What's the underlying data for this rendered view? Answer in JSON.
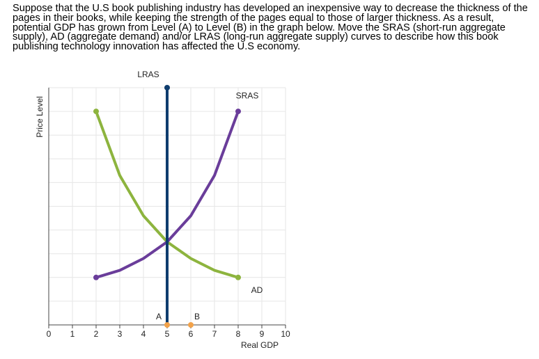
{
  "question": "Suppose that the U.S book publishing industry has developed an inexpensive way to decrease the thickness of the pages in their books, while keeping the strength of the pages equal to those of larger thickness. As a result, potential GDP has grown from Level (A) to Level (B) in the graph below. Move the SRAS (short-run aggregate supply), AD (aggregate demand) and/or LRAS (long-run aggregate supply) curves to describe how this book publishing technology innovation has affected the U.S economy.",
  "chart_data": {
    "type": "line",
    "x_label": "Real GDP",
    "y_label": "Price Level",
    "xlim": [
      0,
      10
    ],
    "ylim": [
      0,
      10
    ],
    "xticks": [
      0,
      1,
      2,
      3,
      4,
      5,
      6,
      7,
      8,
      9,
      10
    ],
    "grid": true,
    "x": [
      2,
      3,
      4,
      5,
      6,
      7,
      8
    ],
    "series": [
      {
        "name": "AD",
        "color": "#8db43e",
        "values": [
          9,
          6.3,
          4.6,
          3.5,
          2.8,
          2.3,
          2
        ]
      },
      {
        "name": "SRAS",
        "color": "#6a3d9a",
        "values": [
          2,
          2.3,
          2.8,
          3.5,
          4.6,
          6.3,
          9
        ]
      }
    ],
    "lras": {
      "name": "LRAS",
      "x": 5,
      "color": "#0f3d6e"
    },
    "points": [
      {
        "name": "A",
        "x": 5,
        "color": "#f2a24a"
      },
      {
        "name": "B",
        "x": 6,
        "color": "#f2a24a"
      }
    ]
  }
}
